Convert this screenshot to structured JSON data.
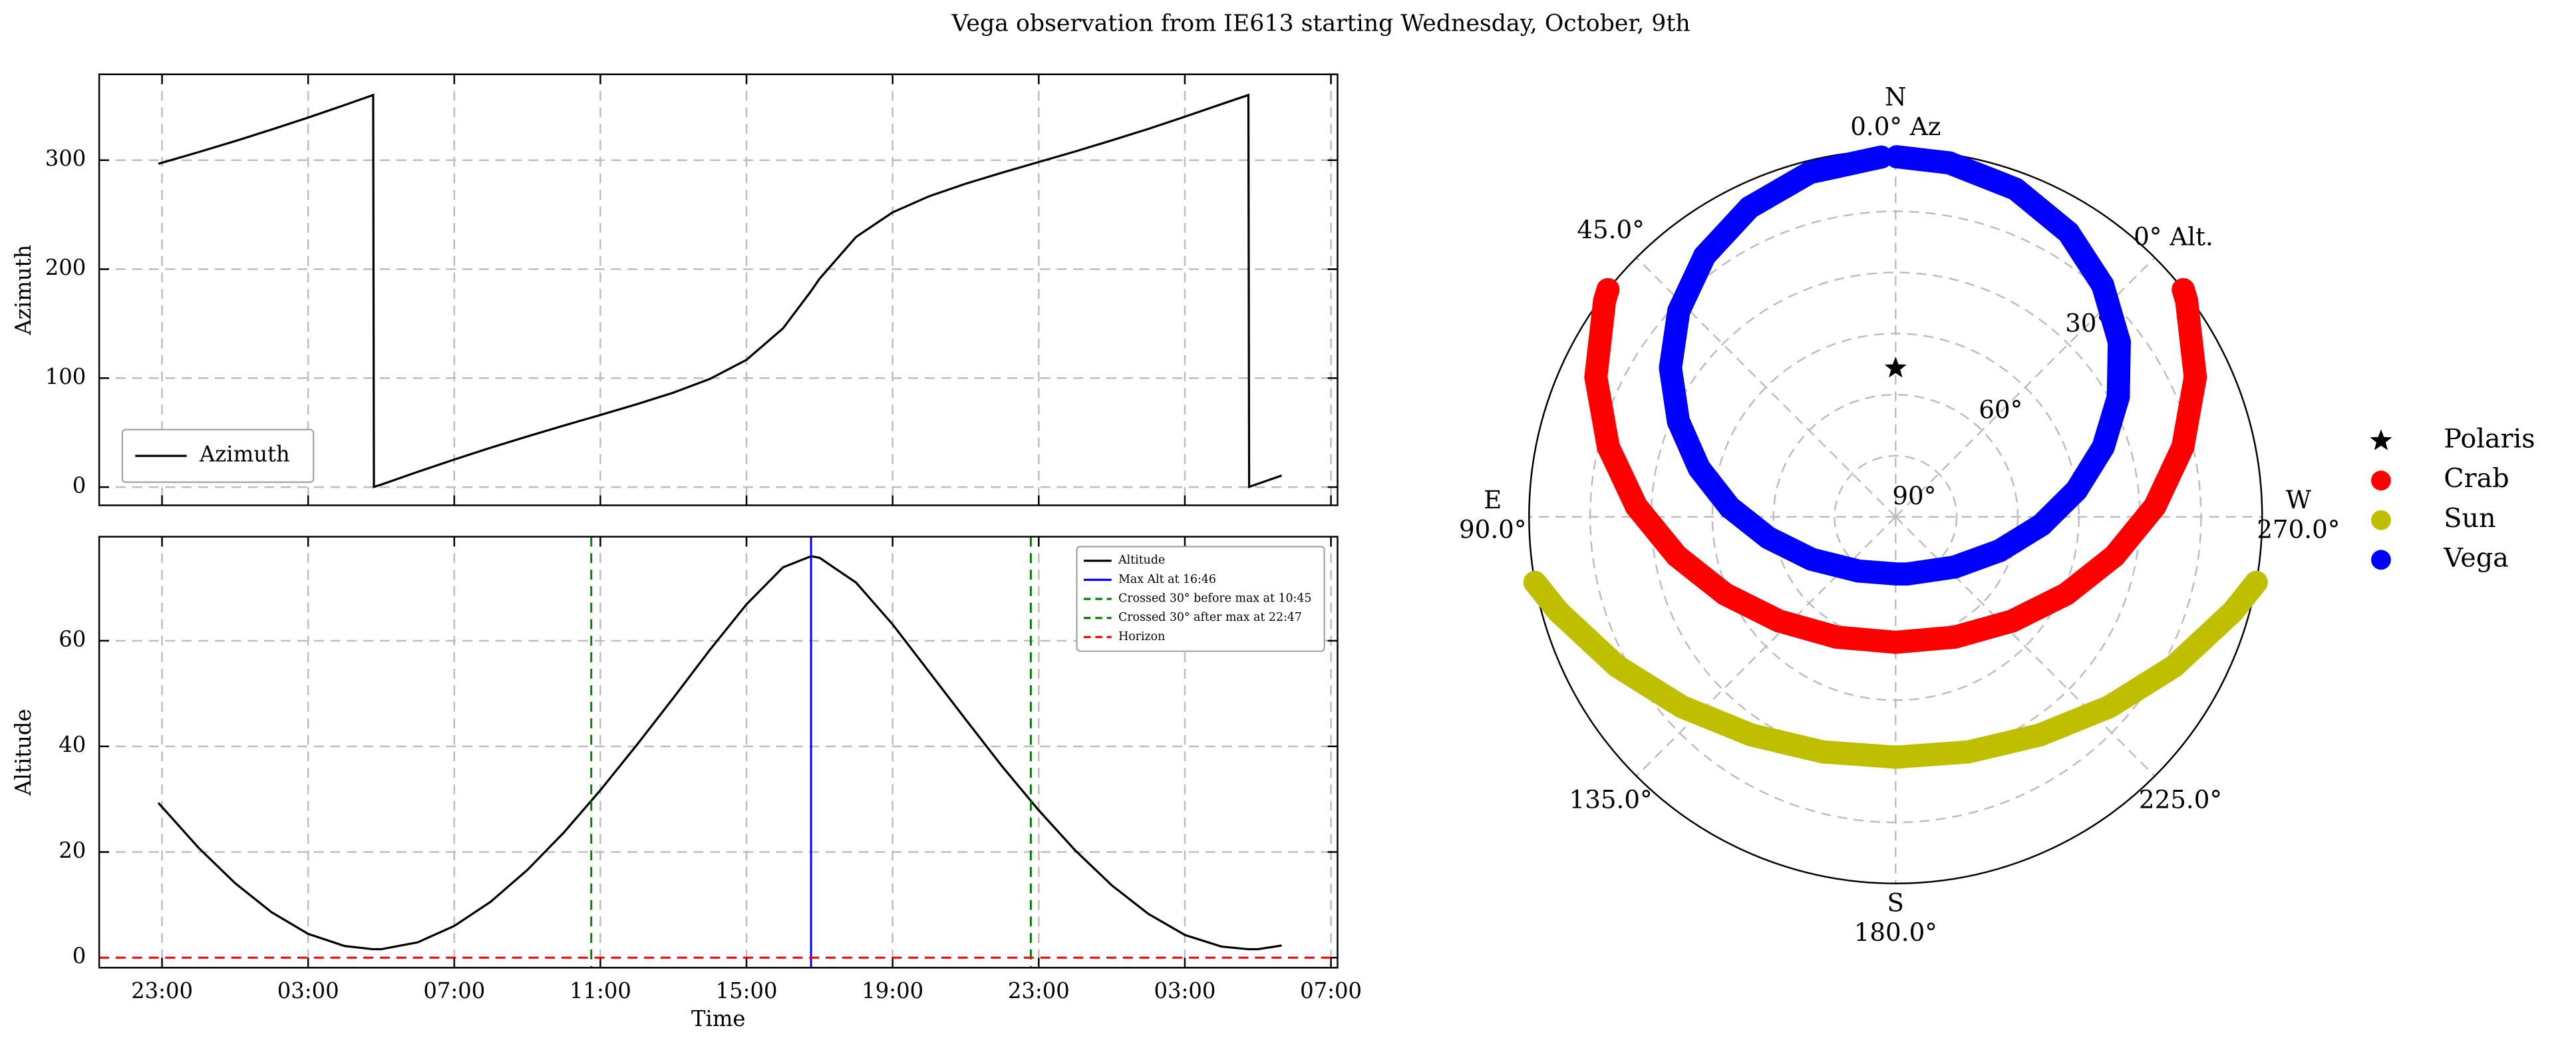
{
  "title": "Vega observation from IE613 starting Wednesday, October, 9th",
  "chart_data": [
    {
      "type": "line",
      "ylabel": "Azimuth",
      "x": [
        22.9,
        24,
        25,
        26,
        27,
        28,
        28.78,
        28.8,
        29,
        30,
        31,
        32,
        33,
        34,
        35,
        36,
        37,
        38,
        39,
        40,
        40.77,
        41,
        42,
        43,
        44,
        45,
        46,
        47,
        48,
        49,
        50,
        51,
        52,
        52.74,
        52.76,
        53,
        53.65
      ],
      "series": [
        {
          "name": "Azimuth",
          "color": "#000000",
          "values": [
            296.7,
            307.4,
            317.5,
            328.1,
            339.1,
            350.6,
            359.8,
            0.2,
            2.3,
            14.0,
            25.3,
            36.2,
            46.5,
            56.5,
            66.2,
            76.1,
            86.7,
            99.3,
            116.8,
            145.7,
            180,
            191.2,
            229.6,
            252.1,
            266.9,
            278.4,
            288.6,
            298.3,
            308.0,
            318.2,
            328.7,
            339.9,
            351.4,
            359.8,
            0.2,
            3.0,
            10.6
          ]
        }
      ],
      "xlim": [
        21.28,
        55.18
      ],
      "ylim": [
        -16.7,
        378.8
      ],
      "xticks": [
        23,
        27,
        31,
        35,
        39,
        43,
        47,
        51,
        55
      ],
      "yticks": [
        0,
        100,
        200,
        300
      ],
      "grid": true,
      "legend": "lower left"
    },
    {
      "type": "line",
      "xlabel": "Time",
      "ylabel": "Altitude",
      "x": [
        22.9,
        24,
        25,
        26,
        27,
        28,
        28.78,
        28.8,
        29,
        30,
        31,
        32,
        33,
        34,
        35,
        36,
        37,
        38,
        39,
        40,
        40.77,
        41,
        42,
        43,
        44,
        45,
        46,
        47,
        48,
        49,
        50,
        51,
        52,
        52.74,
        52.76,
        53,
        53.65
      ],
      "series": [
        {
          "name": "Altitude",
          "color": "#000000",
          "values": [
            29.3,
            20.8,
            14.1,
            8.6,
            4.5,
            2.2,
            1.6,
            1.6,
            1.6,
            2.9,
            6.0,
            10.6,
            16.6,
            23.7,
            31.7,
            40.3,
            49.2,
            58.3,
            66.9,
            73.9,
            76.0,
            75.7,
            71.0,
            63.1,
            54.1,
            45.1,
            36.2,
            27.9,
            20.3,
            13.7,
            8.3,
            4.3,
            2.1,
            1.6,
            1.6,
            1.6,
            2.3
          ]
        }
      ],
      "vlines": [
        {
          "name": "Max Alt at 16:46",
          "color": "#0000ff",
          "style": "solid",
          "x": 40.767
        },
        {
          "name": "Crossed 30° before max at 10:45",
          "color": "#008000",
          "style": "dashed",
          "x": 34.75
        },
        {
          "name": "Crossed 30° after max at 22:47",
          "color": "#008000",
          "style": "dashed",
          "x": 46.783
        }
      ],
      "hlines": [
        {
          "name": "Horizon",
          "color": "#ff0000",
          "style": "dashed",
          "y": 0
        }
      ],
      "xlim": [
        21.28,
        55.18
      ],
      "ylim": [
        -1.9,
        79.7
      ],
      "xticks": [
        {
          "value": 23,
          "label": "23:00"
        },
        {
          "value": 27,
          "label": "03:00"
        },
        {
          "value": 31,
          "label": "07:00"
        },
        {
          "value": 35,
          "label": "11:00"
        },
        {
          "value": 39,
          "label": "15:00"
        },
        {
          "value": 43,
          "label": "19:00"
        },
        {
          "value": 47,
          "label": "23:00"
        },
        {
          "value": 51,
          "label": "03:00"
        },
        {
          "value": 55,
          "label": "07:00"
        }
      ],
      "yticks": [
        0,
        20,
        40,
        60
      ],
      "grid": true,
      "legend": "upper right"
    },
    {
      "type": "polar",
      "theta_zero": "top",
      "theta_direction": "counterclockwise",
      "rlim": [
        90,
        0
      ],
      "rticks": [
        {
          "value": 90,
          "label": "90°"
        },
        {
          "value": 60,
          "label": "60°"
        },
        {
          "value": 30,
          "label": "30°"
        },
        {
          "value": 0,
          "label": "0° Alt."
        }
      ],
      "rgrid": [
        15,
        30,
        45,
        60,
        75
      ],
      "thetagrid": [
        0,
        45,
        90,
        135,
        180,
        225,
        270,
        315
      ],
      "thetaticks": [
        {
          "value": 0,
          "label": "0.0° Az"
        },
        {
          "value": 45,
          "label": "45.0°"
        },
        {
          "value": 90,
          "label": "90.0°"
        },
        {
          "value": 135,
          "label": "135.0°"
        },
        {
          "value": 180,
          "label": "180.0°"
        },
        {
          "value": 225,
          "label": "225.0°"
        },
        {
          "value": 270,
          "label": "270.0°"
        }
      ],
      "cardinals": [
        {
          "value": 0,
          "label": "N"
        },
        {
          "value": 90,
          "label": "E"
        },
        {
          "value": 180,
          "label": "S"
        },
        {
          "value": 270,
          "label": "W"
        }
      ],
      "series": [
        {
          "name": "Polaris",
          "color": "#000000",
          "marker": "star",
          "az": [
            0
          ],
          "alt": [
            53.5
          ]
        },
        {
          "name": "Crab",
          "color": "#ff0000",
          "marker": "circle",
          "az": [
            51.7,
            53.4,
            65.0,
            76.3,
            87.7,
            100.1,
            114.3,
            131.7,
            153.8,
            180,
            206.2,
            228.3,
            245.7,
            259.9,
            272.3,
            283.7,
            295.0,
            306.6,
            308.3
          ],
          "alt": [
            0,
            1.0,
            8.8,
            17.4,
            26.3,
            35.4,
            44.0,
            51.6,
            57.1,
            59.2,
            57.1,
            51.6,
            44.0,
            35.4,
            26.3,
            17.4,
            8.8,
            1.0,
            0
          ]
        },
        {
          "name": "Sun",
          "color": "#bfbf00",
          "marker": "circle",
          "az": [
            100.3,
            105.7,
            118.2,
            131.6,
            146.5,
            162.8,
            180,
            197.2,
            213.5,
            228.4,
            241.8,
            254.3,
            259.7
          ],
          "alt": [
            0,
            4.0,
            12.4,
            19.8,
            25.8,
            29.6,
            31.0,
            29.6,
            25.8,
            19.8,
            12.4,
            4.0,
            0
          ]
        },
        {
          "name": "Vega",
          "color": "#0000ff",
          "marker": "circle",
          "az": [
            2.3,
            14.0,
            25.3,
            36.2,
            46.5,
            56.5,
            66.2,
            76.1,
            86.7,
            99.3,
            116.8,
            145.7,
            180,
            191.2,
            229.6,
            252.1,
            266.9,
            278.4,
            288.6,
            298.3,
            308.0,
            318.2,
            328.7,
            339.9,
            351.4,
            359.8
          ],
          "alt": [
            1.6,
            2.9,
            6.0,
            10.6,
            16.6,
            23.7,
            31.7,
            40.3,
            49.2,
            58.3,
            66.9,
            73.9,
            76.0,
            75.7,
            71.0,
            63.1,
            54.1,
            45.1,
            36.2,
            27.9,
            20.3,
            13.7,
            8.3,
            4.3,
            2.1,
            1.6
          ]
        }
      ],
      "legend": "center right"
    }
  ]
}
